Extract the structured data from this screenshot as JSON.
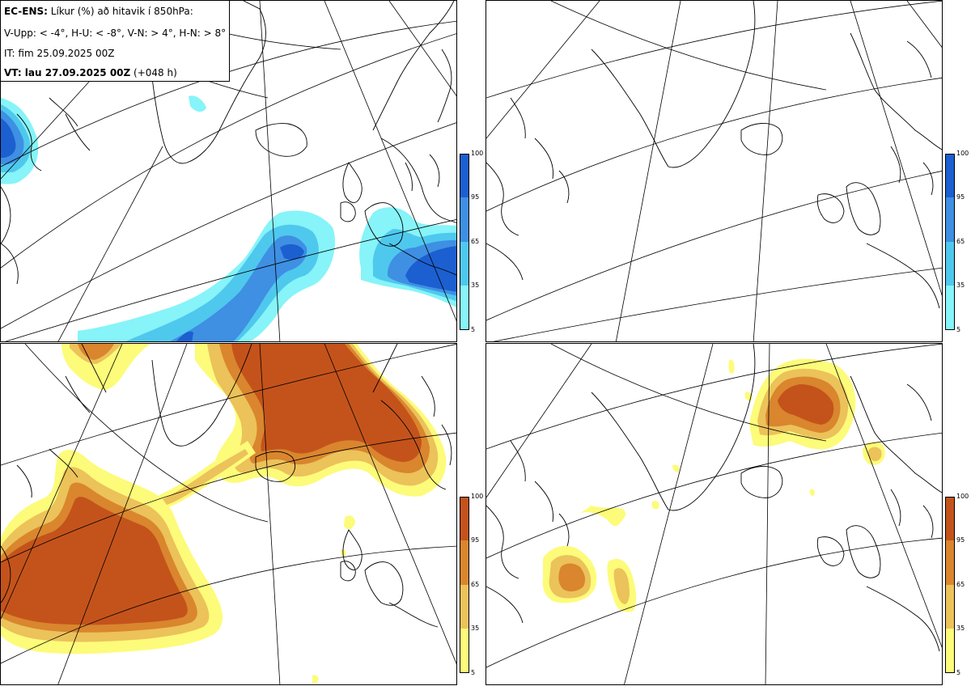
{
  "header": {
    "model": "EC-ENS:",
    "description": "Líkur (%) að hitavik í 850hPa:",
    "criteria": "V-Upp: < -4°, H-U: < -8°, V-N: > 4°, H-N: > 8°",
    "initial_time": "IT: fim 25.09.2025 00Z",
    "valid_label": "VT: lau 27.09.2025 00Z",
    "lead_time": "(+048 h)"
  },
  "panels": [
    {
      "id": "upper-left",
      "criterion": "V-Upp: < -4°",
      "palette": "blue"
    },
    {
      "id": "upper-right",
      "criterion": "H-U: < -8°",
      "palette": "blue"
    },
    {
      "id": "lower-left",
      "criterion": "V-N: > 4°",
      "palette": "orange"
    },
    {
      "id": "lower-right",
      "criterion": "H-N: > 8°",
      "palette": "orange"
    }
  ],
  "colorbar": {
    "ticks": [
      "100",
      "95",
      "65",
      "35",
      "5"
    ],
    "blue_colors": [
      "#1c5fd1",
      "#3f8fe3",
      "#4fc8ee",
      "#86f4f8"
    ],
    "orange_colors": [
      "#c4531b",
      "#d9862e",
      "#ecc25a",
      "#fdfb7a"
    ]
  },
  "colors": {
    "land_outline": "#000000",
    "grid": "#000000",
    "background": "#ffffff"
  }
}
